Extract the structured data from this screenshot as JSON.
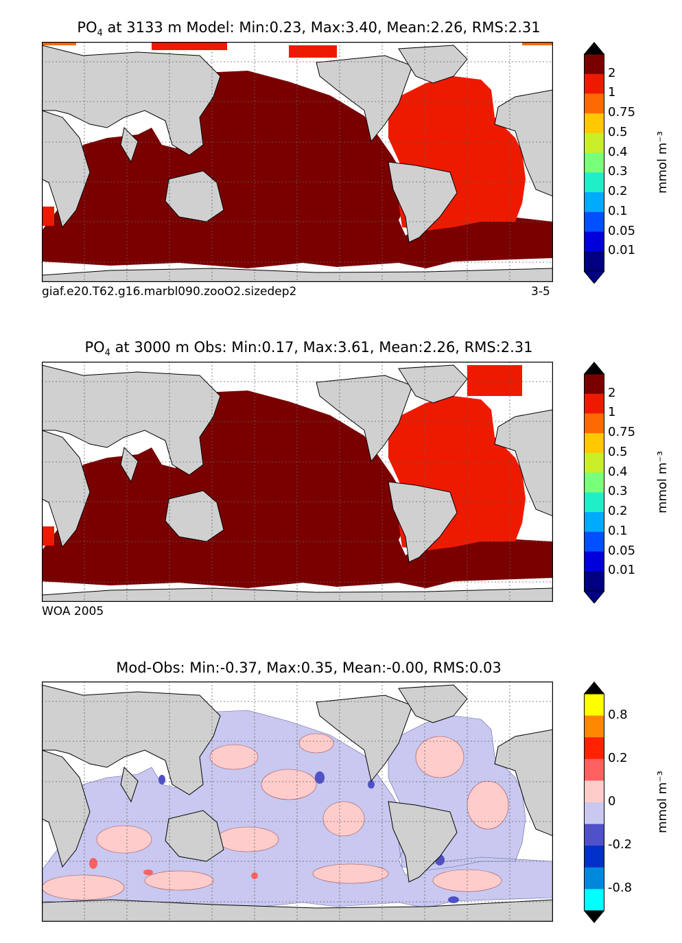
{
  "panels": [
    {
      "title_prefix": "PO",
      "title_sub": "4",
      "title_rest": " at 3133 m Model: Min:0.23, Max:3.40, Mean:2.26, RMS:2.31",
      "caption_left": "giaf.e20.T62.g16.marbl090.zooO2.sizedep2",
      "caption_right": "3-5",
      "colorbar": {
        "labels": [
          "2",
          "1",
          "0.75",
          "0.5",
          "0.4",
          "0.3",
          "0.2",
          "0.1",
          "0.05",
          "0.01"
        ],
        "colors": [
          "#7a0000",
          "#ee1a00",
          "#ff6a00",
          "#ffc800",
          "#c8ee2a",
          "#7aff7a",
          "#20eec8",
          "#00aaff",
          "#0050ff",
          "#0000dd",
          "#000080"
        ],
        "units": "mmol m⁻³"
      }
    },
    {
      "title_prefix": "PO",
      "title_sub": "4",
      "title_rest": " at 3000 m Obs: Min:0.17, Max:3.61, Mean:2.26, RMS:2.31",
      "caption_left": "WOA 2005",
      "caption_right": "",
      "colorbar": {
        "labels": [
          "2",
          "1",
          "0.75",
          "0.5",
          "0.4",
          "0.3",
          "0.2",
          "0.1",
          "0.05",
          "0.01"
        ],
        "colors": [
          "#7a0000",
          "#ee1a00",
          "#ff6a00",
          "#ffc800",
          "#c8ee2a",
          "#7aff7a",
          "#20eec8",
          "#00aaff",
          "#0050ff",
          "#0000dd",
          "#000080"
        ],
        "units": "mmol m⁻³"
      }
    },
    {
      "title_prefix": "",
      "title_sub": "",
      "title_rest": "Mod-Obs: Min:-0.37, Max:0.35, Mean:-0.00, RMS:0.03",
      "caption_left": "",
      "caption_right": "",
      "colorbar": {
        "labels": [
          "0.8",
          "0.2",
          "0",
          "-0.2",
          "-0.8"
        ],
        "colors": [
          "#ffff00",
          "#ff8800",
          "#ff2200",
          "#ff6060",
          "#ffcccc",
          "#c8c8f0",
          "#5050c8",
          "#0030c8",
          "#0088dd",
          "#00ffff"
        ],
        "units": "mmol m⁻³"
      }
    }
  ],
  "colors": {
    "land": "#d0d0d0",
    "pacific_indian": "#7a0000",
    "atlantic": "#ee1a00",
    "diff_positive": "#ffcccc",
    "diff_negative": "#c8c8f0"
  }
}
